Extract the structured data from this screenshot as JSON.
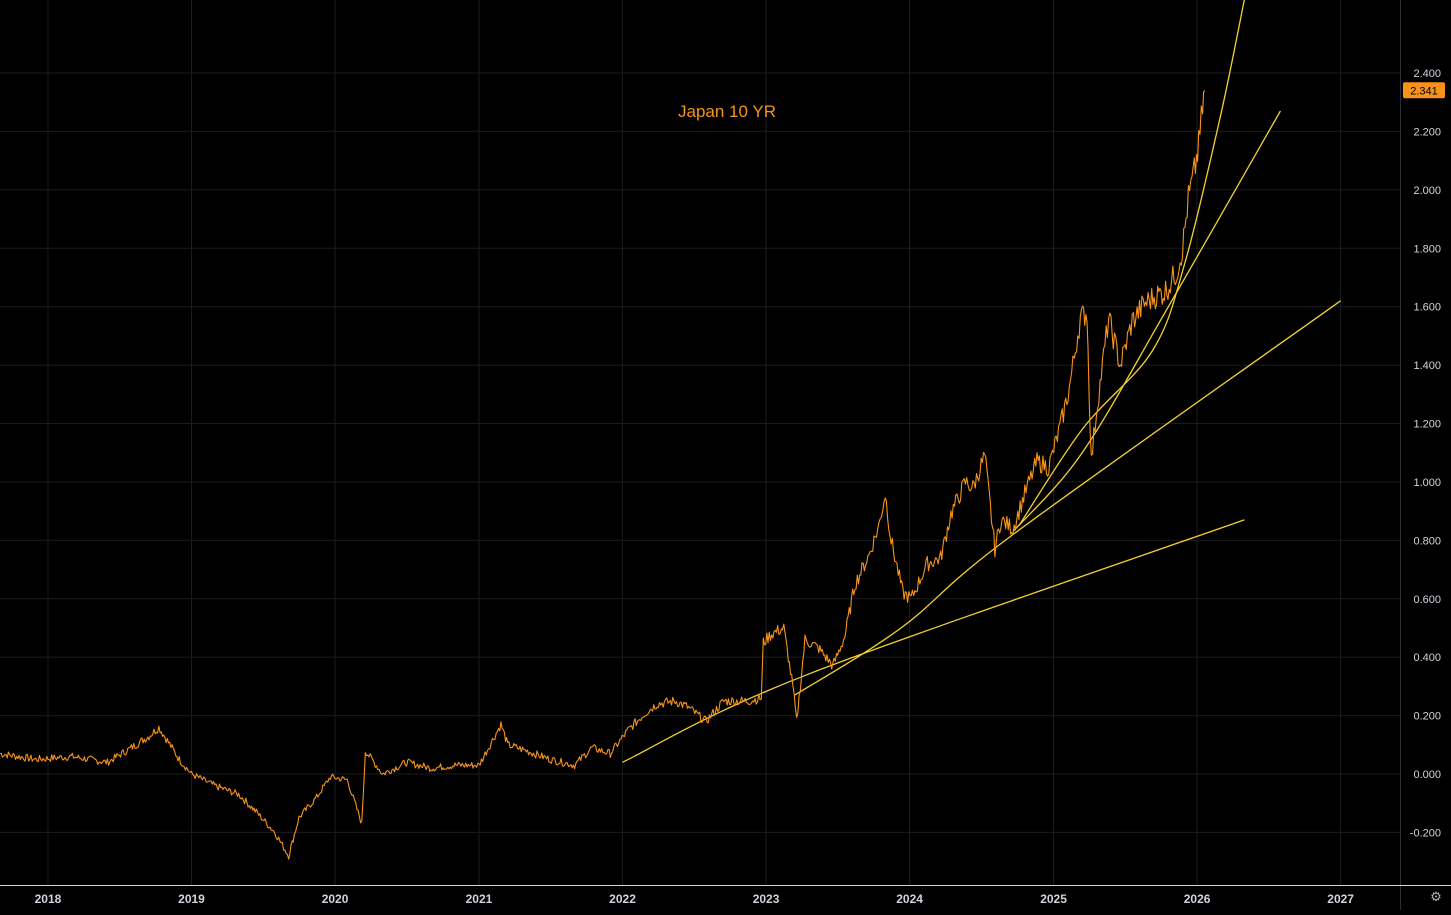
{
  "chart_data": {
    "type": "line",
    "title": "Japan 10 YR",
    "xlabel": "",
    "ylabel": "",
    "x_ticks": [
      "2018",
      "2019",
      "2020",
      "2021",
      "2022",
      "2023",
      "2024",
      "2025",
      "2026",
      "2027"
    ],
    "y_ticks": [
      "2.400",
      "2.200",
      "2.000",
      "1.800",
      "1.600",
      "1.400",
      "1.200",
      "1.000",
      "0.800",
      "0.600",
      "0.400",
      "0.200",
      "0.000",
      "-0.200"
    ],
    "ylim": [
      -0.38,
      2.65
    ],
    "xlim": [
      "2017-09-01",
      "2027-06-01"
    ],
    "grid": true,
    "last_value": "2.341",
    "series": [
      {
        "color": "#f7931a",
        "x": [
          "2017-09-01",
          "2017-12-01",
          "2018-03-01",
          "2018-06-01",
          "2018-08-01",
          "2018-09-15",
          "2018-10-10",
          "2018-12-01",
          "2019-01-01",
          "2019-03-01",
          "2019-05-01",
          "2019-06-15",
          "2019-08-01",
          "2019-09-05",
          "2019-10-01",
          "2019-11-15",
          "2019-12-20",
          "2020-02-01",
          "2020-03-09",
          "2020-03-18",
          "2020-05-01",
          "2020-07-01",
          "2020-09-01",
          "2020-11-01",
          "2021-01-01",
          "2021-02-26",
          "2021-03-15",
          "2021-05-01",
          "2021-07-01",
          "2021-09-01",
          "2021-10-15",
          "2021-12-01",
          "2022-01-15",
          "2022-03-01",
          "2022-03-30",
          "2022-05-15",
          "2022-06-15",
          "2022-08-01",
          "2022-09-15",
          "2022-11-15",
          "2022-12-20",
          "2022-12-25",
          "2023-01-15",
          "2023-02-15",
          "2023-03-10",
          "2023-03-20",
          "2023-04-10",
          "2023-05-15",
          "2023-06-20",
          "2023-07-20",
          "2023-08-15",
          "2023-09-20",
          "2023-10-15",
          "2023-10-31",
          "2023-11-15",
          "2023-12-15",
          "2024-01-05",
          "2024-02-15",
          "2024-03-20",
          "2024-04-15",
          "2024-05-22",
          "2024-06-10",
          "2024-07-10",
          "2024-08-05",
          "2024-08-20",
          "2024-09-20",
          "2024-10-20",
          "2024-11-20",
          "2024-12-20",
          "2025-01-20",
          "2025-02-10",
          "2025-03-10",
          "2025-03-27",
          "2025-04-07",
          "2025-04-20",
          "2025-05-21",
          "2025-06-20",
          "2025-07-20",
          "2025-08-20",
          "2025-09-20",
          "2025-10-10",
          "2025-10-25",
          "2025-11-10",
          "2025-11-25",
          "2025-12-10",
          "2025-12-25",
          "2026-01-05",
          "2026-01-15",
          "2026-01-20"
        ],
        "y": [
          0.07,
          0.05,
          0.06,
          0.04,
          0.09,
          0.13,
          0.16,
          0.05,
          0.0,
          -0.04,
          -0.07,
          -0.13,
          -0.2,
          -0.28,
          -0.15,
          -0.08,
          -0.01,
          -0.02,
          -0.17,
          0.08,
          0.0,
          0.04,
          0.02,
          0.03,
          0.03,
          0.17,
          0.1,
          0.08,
          0.05,
          0.03,
          0.09,
          0.07,
          0.15,
          0.21,
          0.24,
          0.25,
          0.23,
          0.18,
          0.25,
          0.25,
          0.26,
          0.45,
          0.48,
          0.5,
          0.3,
          0.18,
          0.46,
          0.43,
          0.37,
          0.47,
          0.65,
          0.75,
          0.85,
          0.96,
          0.8,
          0.62,
          0.6,
          0.72,
          0.74,
          0.89,
          1.0,
          0.98,
          1.09,
          0.77,
          0.87,
          0.84,
          0.96,
          1.07,
          1.05,
          1.2,
          1.32,
          1.56,
          1.58,
          1.07,
          1.24,
          1.56,
          1.4,
          1.55,
          1.61,
          1.64,
          1.65,
          1.68,
          1.72,
          1.8,
          1.97,
          2.06,
          2.15,
          2.28,
          2.341
        ]
      }
    ],
    "trendlines": [
      {
        "color": "#f5d22e",
        "x": [
          "2022-01-01",
          "2023-04-15",
          "2026-05-01"
        ],
        "y": [
          0.04,
          0.34,
          0.87
        ]
      },
      {
        "color": "#f5d22e",
        "x": [
          "2023-03-15",
          "2023-12-10",
          "2024-09-20",
          "2027-01-01"
        ],
        "y": [
          0.27,
          0.5,
          0.82,
          1.62
        ]
      },
      {
        "color": "#f5d22e",
        "x": [
          "2024-09-20",
          "2025-03-15",
          "2025-10-20",
          "2026-08-01"
        ],
        "y": [
          0.83,
          1.1,
          1.6,
          2.27
        ]
      },
      {
        "color": "#f5d22e",
        "x": [
          "2024-10-05",
          "2025-03-15",
          "2025-09-10",
          "2025-12-01",
          "2026-03-01",
          "2026-05-01"
        ],
        "y": [
          0.85,
          1.18,
          1.45,
          1.75,
          2.25,
          2.65
        ]
      }
    ]
  },
  "colors": {
    "background": "#000000",
    "grid": "#1c1c1c",
    "axis_text": "#d1d4dc",
    "price_line": "#f7931a",
    "trendline": "#f5d22e",
    "title": "#f7931a",
    "price_tag_bg": "#f7931a",
    "price_tag_text": "#000000"
  },
  "controls": {
    "settings_icon": "gear-icon",
    "settings_glyph": "⚙"
  }
}
